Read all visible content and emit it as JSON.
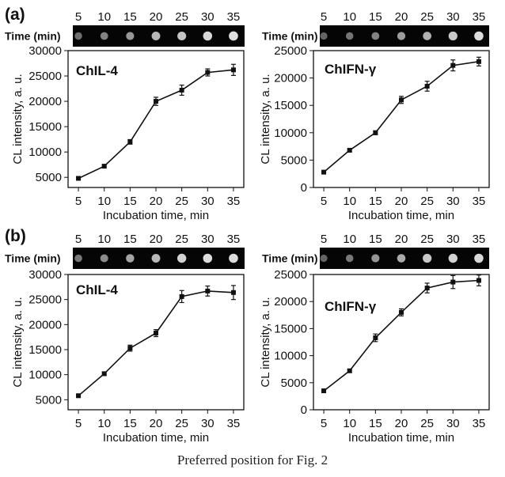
{
  "caption": "Preferred position for Fig. 2",
  "strip_label": "Time (min)",
  "chart_data": [
    {
      "type": "line",
      "panel_label": "(a)",
      "inset_title": "ChIL-4",
      "xlabel": "Incubation time, min",
      "ylabel": "CL intensity, a. u.",
      "x": [
        5,
        10,
        15,
        20,
        25,
        30,
        35
      ],
      "y": [
        4800,
        7200,
        12000,
        20000,
        22200,
        25700,
        26200
      ],
      "yerr": [
        250,
        300,
        450,
        800,
        1000,
        700,
        1100
      ],
      "ylim": [
        3000,
        30000
      ],
      "yticks": [
        5000,
        10000,
        15000,
        20000,
        25000,
        30000
      ],
      "xlim": [
        3,
        37
      ],
      "xticks": [
        5,
        10,
        15,
        20,
        25,
        30,
        35
      ],
      "spot_intensity": [
        0.35,
        0.45,
        0.55,
        0.72,
        0.78,
        0.88,
        0.92
      ]
    },
    {
      "type": "line",
      "panel_label": "",
      "inset_title": "ChIFN-γ",
      "xlabel": "Incubation time, min",
      "ylabel": "CL intensity, a. u.",
      "x": [
        5,
        10,
        15,
        20,
        25,
        30,
        35
      ],
      "y": [
        2800,
        6800,
        10000,
        16000,
        18500,
        22300,
        23000
      ],
      "yerr": [
        200,
        250,
        350,
        650,
        900,
        1000,
        800
      ],
      "ylim": [
        0,
        25000
      ],
      "yticks": [
        0,
        5000,
        10000,
        15000,
        20000,
        25000
      ],
      "xlim": [
        3,
        37
      ],
      "xticks": [
        5,
        10,
        15,
        20,
        25,
        30,
        35
      ],
      "spot_intensity": [
        0.3,
        0.38,
        0.45,
        0.58,
        0.68,
        0.8,
        0.9
      ]
    },
    {
      "type": "line",
      "panel_label": "(b)",
      "inset_title": "ChIL-4",
      "xlabel": "Incubation time, min",
      "ylabel": "CL intensity, a. u.",
      "x": [
        5,
        10,
        15,
        20,
        25,
        30,
        35
      ],
      "y": [
        5800,
        10200,
        15300,
        18300,
        25600,
        26700,
        26400
      ],
      "yerr": [
        200,
        350,
        600,
        700,
        1200,
        1000,
        1400
      ],
      "ylim": [
        3000,
        30000
      ],
      "yticks": [
        5000,
        10000,
        15000,
        20000,
        25000,
        30000
      ],
      "xlim": [
        3,
        37
      ],
      "xticks": [
        5,
        10,
        15,
        20,
        25,
        30,
        35
      ],
      "spot_intensity": [
        0.4,
        0.5,
        0.62,
        0.72,
        0.85,
        0.9,
        0.9
      ]
    },
    {
      "type": "line",
      "panel_label": "",
      "inset_title": "ChIFN-γ",
      "xlabel": "Incubation time, min",
      "ylabel": "CL intensity, a. u.",
      "x": [
        5,
        10,
        15,
        20,
        25,
        30,
        35
      ],
      "y": [
        3500,
        7200,
        13300,
        18000,
        22500,
        23600,
        23900
      ],
      "yerr": [
        200,
        300,
        700,
        650,
        900,
        1200,
        1000
      ],
      "ylim": [
        0,
        25000
      ],
      "yticks": [
        0,
        5000,
        10000,
        15000,
        20000,
        25000
      ],
      "xlim": [
        3,
        37
      ],
      "xticks": [
        5,
        10,
        15,
        20,
        25,
        30,
        35
      ],
      "spot_intensity": [
        0.3,
        0.4,
        0.55,
        0.65,
        0.8,
        0.85,
        0.88
      ]
    }
  ]
}
